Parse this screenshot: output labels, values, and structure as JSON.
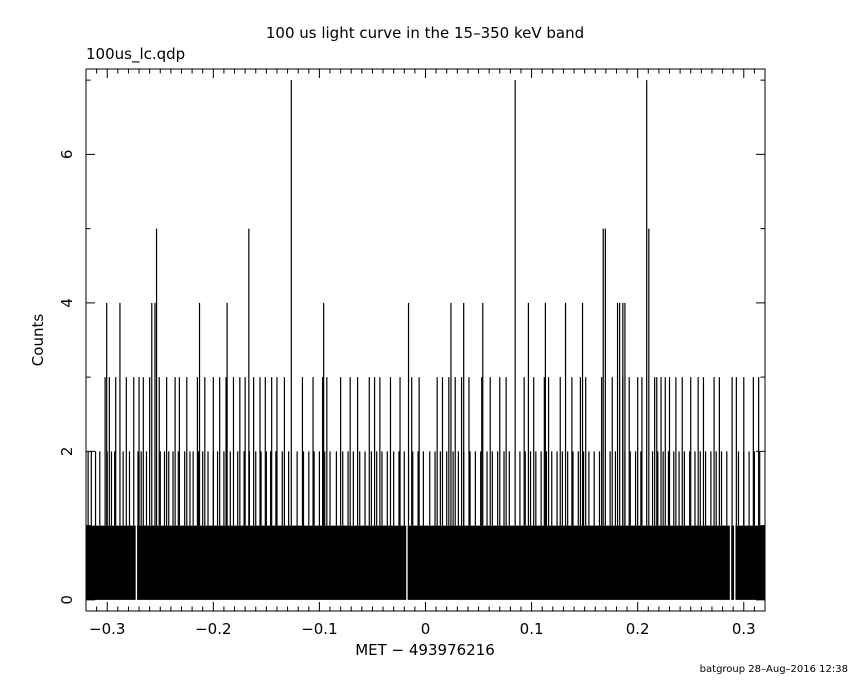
{
  "chart_data": {
    "type": "bar",
    "title": "100 us light curve in the 15–350 keV band",
    "subtitle": "100us_lc.qdp",
    "xlabel": "MET − 493976216",
    "ylabel": "Counts",
    "footer": "batgroup 28–Aug–2016 12:38",
    "xlim": [
      -0.32,
      0.32
    ],
    "ylim": [
      -0.15,
      7.15
    ],
    "x_ticks": [
      -0.3,
      -0.2,
      -0.1,
      0,
      0.1,
      0.2,
      0.3
    ],
    "x_tick_labels": [
      "−0.3",
      "−0.2",
      "−0.1",
      "0",
      "0.1",
      "0.2",
      "0.3"
    ],
    "y_ticks": [
      0,
      2,
      4,
      6
    ],
    "y_tick_labels": [
      "0",
      "2",
      "4",
      "6"
    ],
    "bin_width": 0.0001,
    "baseline_counts": 1,
    "grid": false,
    "legend": "none",
    "zero_bins": [
      -0.2725,
      -0.0175,
      0.2875,
      0.2915
    ],
    "bins_at_2": [
      -0.318,
      -0.315,
      -0.311,
      -0.307,
      -0.3,
      -0.296,
      -0.293,
      -0.285,
      -0.279,
      -0.271,
      -0.268,
      -0.263,
      -0.25,
      -0.246,
      -0.242,
      -0.238,
      -0.233,
      -0.227,
      -0.222,
      -0.219,
      -0.214,
      -0.21,
      -0.205,
      -0.2,
      -0.196,
      -0.19,
      -0.184,
      -0.177,
      -0.171,
      -0.166,
      -0.16,
      -0.155,
      -0.15,
      -0.146,
      -0.141,
      -0.135,
      -0.129,
      -0.121,
      -0.115,
      -0.11,
      -0.105,
      -0.1,
      -0.095,
      -0.09,
      -0.084,
      -0.078,
      -0.073,
      -0.068,
      -0.062,
      -0.057,
      -0.051,
      -0.046,
      -0.041,
      -0.036,
      -0.03,
      -0.025,
      -0.02,
      -0.012,
      -0.007,
      -0.002,
      0.004,
      0.009,
      0.014,
      0.02,
      0.026,
      0.031,
      0.036,
      0.042,
      0.047,
      0.052,
      0.058,
      0.063,
      0.068,
      0.074,
      0.079,
      0.089,
      0.094,
      0.099,
      0.104,
      0.109,
      0.114,
      0.119,
      0.124,
      0.129,
      0.134,
      0.139,
      0.144,
      0.149,
      0.154,
      0.159,
      0.164,
      0.174,
      0.179,
      0.188,
      0.193,
      0.198,
      0.203,
      0.214,
      0.219,
      0.224,
      0.229,
      0.234,
      0.239,
      0.244,
      0.249,
      0.254,
      0.259,
      0.264,
      0.269,
      0.274,
      0.279,
      0.284,
      0.295,
      0.3,
      0.305,
      0.31,
      0.315
    ],
    "bins_at_3": [
      -0.302,
      -0.298,
      -0.292,
      -0.282,
      -0.275,
      -0.27,
      -0.266,
      -0.26,
      -0.251,
      -0.244,
      -0.236,
      -0.232,
      -0.225,
      -0.215,
      -0.208,
      -0.2,
      -0.194,
      -0.188,
      -0.181,
      -0.175,
      -0.17,
      -0.162,
      -0.156,
      -0.151,
      -0.145,
      -0.14,
      -0.133,
      -0.116,
      -0.106,
      -0.097,
      -0.093,
      -0.08,
      -0.071,
      -0.064,
      -0.053,
      -0.048,
      -0.043,
      -0.033,
      -0.024,
      -0.013,
      -0.006,
      0.011,
      0.016,
      0.022,
      0.028,
      0.034,
      0.041,
      0.053,
      0.061,
      0.07,
      0.076,
      0.093,
      0.102,
      0.112,
      0.116,
      0.127,
      0.138,
      0.146,
      0.151,
      0.166,
      0.176,
      0.186,
      0.192,
      0.2,
      0.204,
      0.216,
      0.218,
      0.222,
      0.226,
      0.23,
      0.236,
      0.242,
      0.25,
      0.257,
      0.262,
      0.272,
      0.277,
      0.289,
      0.293,
      0.3,
      0.309,
      0.314
    ],
    "bins_at_4": [
      -0.3005,
      -0.288,
      -0.258,
      -0.255,
      -0.213,
      -0.187,
      -0.096,
      -0.016,
      0.024,
      0.036,
      0.054,
      0.097,
      0.113,
      0.132,
      0.148,
      0.181,
      0.183,
      0.186,
      0.188
    ],
    "bins_at_5": [
      -0.2535,
      -0.1665,
      0.1675,
      0.1695,
      0.2105
    ],
    "bins_at_7": [
      -0.1265,
      0.0845,
      0.2085
    ]
  }
}
